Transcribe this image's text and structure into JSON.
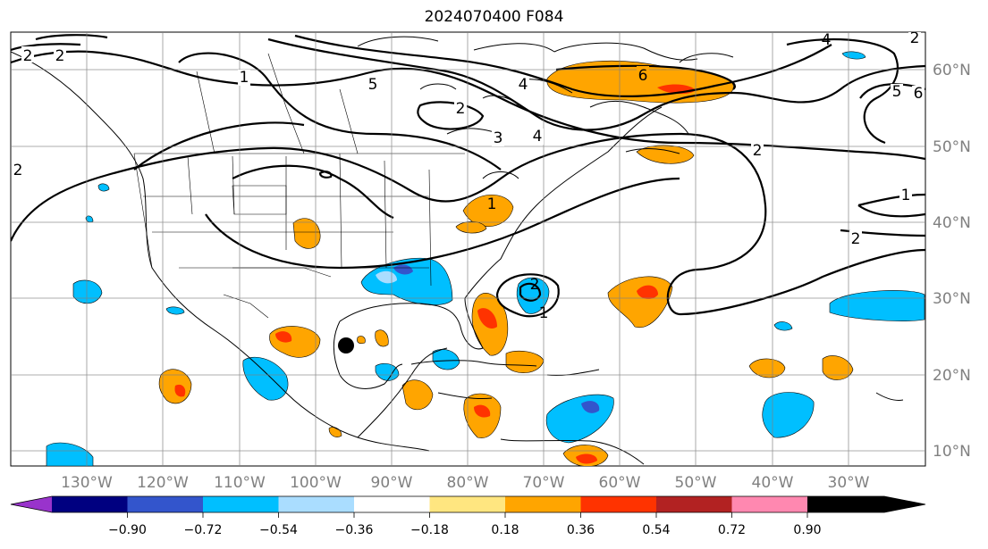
{
  "title": "2024070400 F084",
  "longitude_labels": [
    "130°W",
    "120°W",
    "110°W",
    "100°W",
    "90°W",
    "80°W",
    "70°W",
    "60°W",
    "50°W",
    "40°W",
    "30°W"
  ],
  "latitude_labels": [
    "60°N",
    "50°N",
    "40°N",
    "30°N",
    "20°N",
    "10°N"
  ],
  "colorbar": {
    "tick_labels": [
      "−0.90",
      "−0.72",
      "−0.54",
      "−0.36",
      "−0.18",
      "0.18",
      "0.36",
      "0.54",
      "0.72",
      "0.90"
    ],
    "colors": [
      "#9933cc",
      "#000080",
      "#3355cc",
      "#00bfff",
      "#aaddff",
      "#ffffff",
      "#ffe680",
      "#ffa500",
      "#ff3300",
      "#b22222",
      "#ff88b0"
    ]
  },
  "contour_labels": [
    "2",
    "2",
    "2",
    "1",
    "5",
    "4",
    "2",
    "3",
    "4",
    "6",
    "2",
    "1",
    "2",
    "5",
    "6",
    "2",
    "1",
    "1",
    "2",
    "4"
  ],
  "hurricane_marker": "black-dot"
}
